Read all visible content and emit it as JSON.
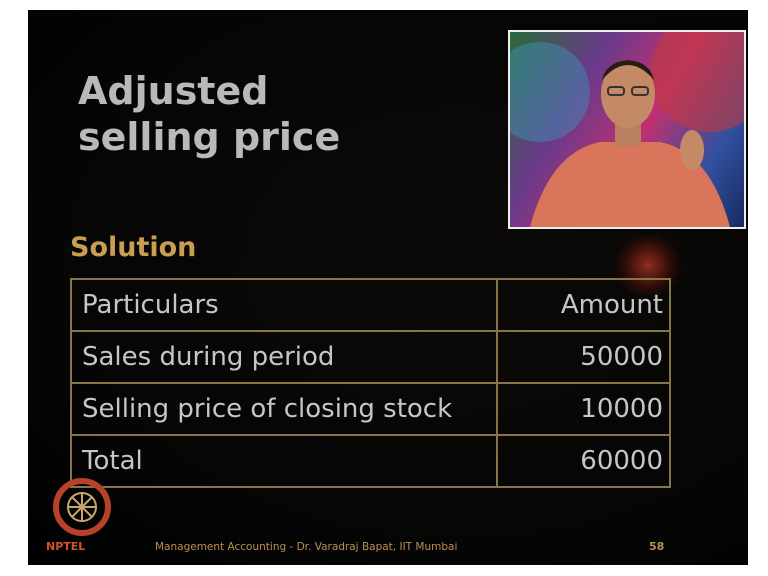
{
  "slide": {
    "title": "Adjusted selling price",
    "subtitle": "Solution",
    "table": {
      "header": [
        "Particulars",
        "Amount"
      ],
      "rows": [
        [
          "Sales during period",
          "50000"
        ],
        [
          "Selling price of closing stock",
          "10000"
        ],
        [
          "Total",
          "60000"
        ]
      ]
    },
    "footer": {
      "logo": "NPTEL",
      "text": "Management Accounting - Dr. Varadraj Bapat, IIT Mumbai",
      "page": "58"
    }
  }
}
